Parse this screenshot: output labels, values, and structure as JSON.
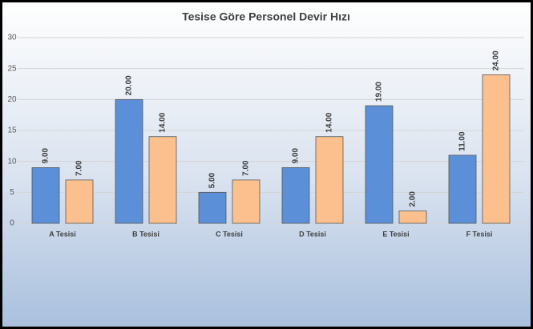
{
  "chart_data": {
    "type": "bar",
    "title": "Tesise Göre Personel Devir Hızı",
    "categories": [
      "A Tesisi",
      "B Tesisi",
      "C Tesisi",
      "D Tesisi",
      "E Tesisi",
      "F Tesisi"
    ],
    "series": [
      {
        "color": "#5b8fd8",
        "values": [
          9,
          20,
          5,
          9,
          19,
          11
        ],
        "value_labels": [
          "9.00",
          "20.00",
          "5.00",
          "9.00",
          "19.00",
          "11.00"
        ]
      },
      {
        "color": "#fcc08e",
        "values": [
          7,
          14,
          7,
          14,
          2,
          24
        ],
        "value_labels": [
          "7.00",
          "14.00",
          "7.00",
          "14.00",
          "2.00",
          "24.00"
        ]
      }
    ],
    "ylim": [
      0,
      30
    ],
    "yticks": [
      0,
      5,
      10,
      15,
      20,
      25,
      30
    ],
    "grid": true
  }
}
